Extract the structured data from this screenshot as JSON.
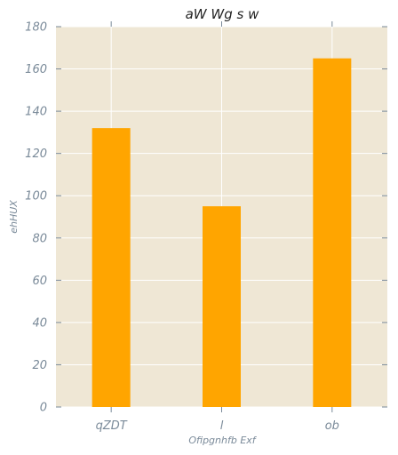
{
  "chart_data": {
    "type": "bar",
    "title": "aW Wg s w",
    "xlabel": "Ofipgnhfb Exf",
    "ylabel": "ehHUX",
    "categories": [
      "qZDT",
      "l",
      "ob"
    ],
    "values": [
      132,
      95,
      165
    ],
    "ylim": [
      0,
      180
    ],
    "yticks": [
      0,
      20,
      40,
      60,
      80,
      100,
      120,
      140,
      160,
      180
    ],
    "grid": true,
    "colors": {
      "bar": "#ffa500",
      "plot_background": "#efe7d5",
      "grid": "#ffffff",
      "tick_text": "#7a8a99",
      "title_text": "#222222"
    }
  }
}
